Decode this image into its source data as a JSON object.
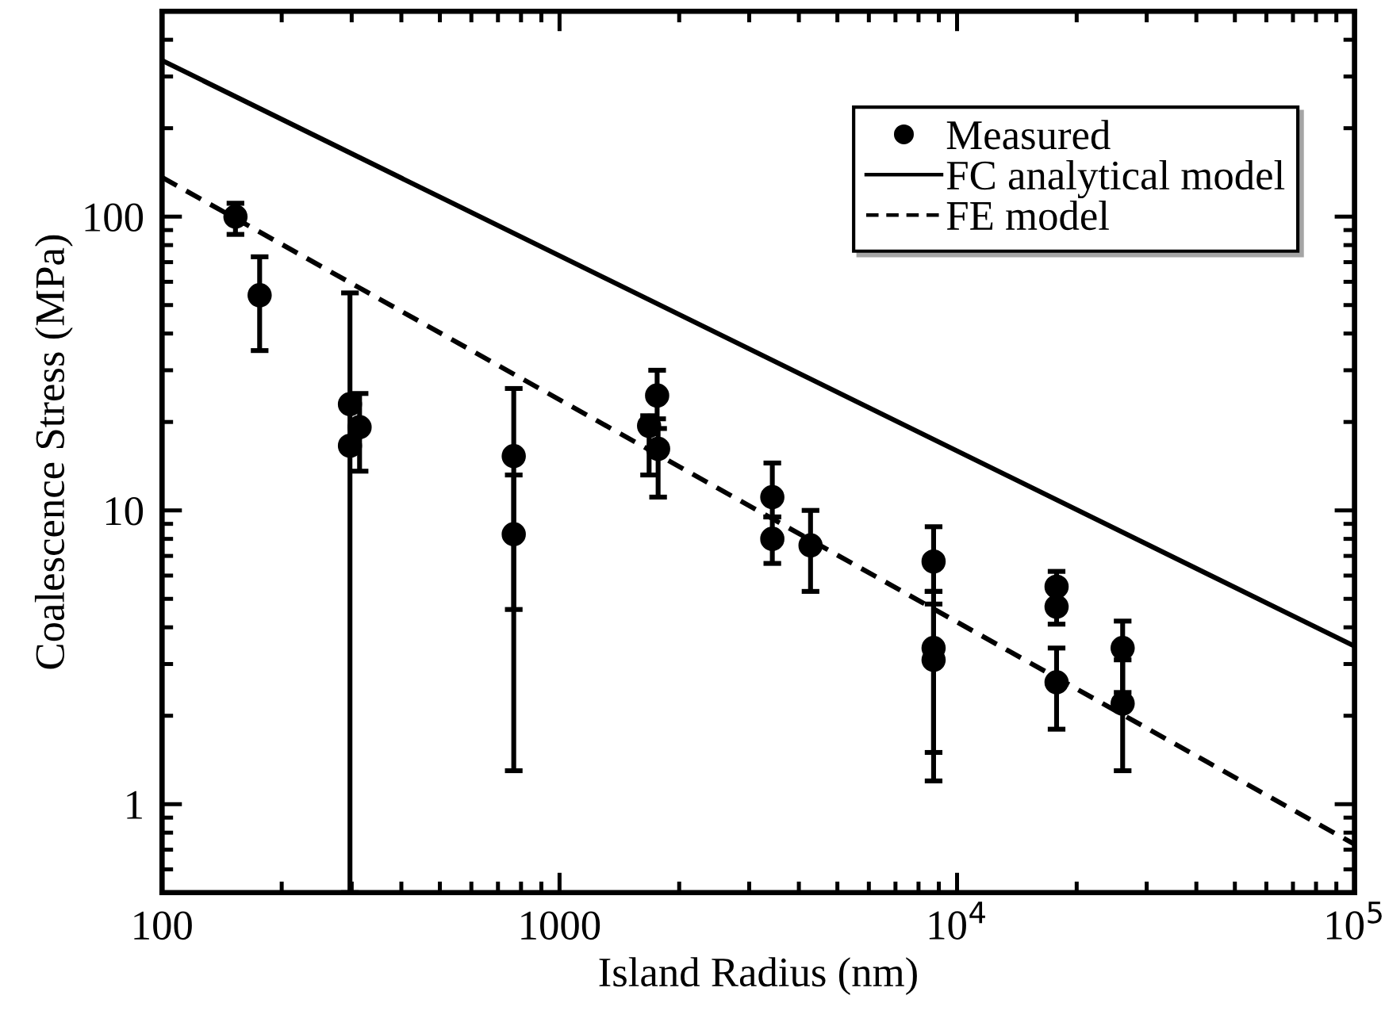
{
  "chart_data": {
    "type": "scatter",
    "xlabel": "Island Radius (nm)",
    "ylabel": "Coalescence Stress (MPa)",
    "log": "xy",
    "xlim": [
      100,
      100000
    ],
    "ylim": [
      0.5,
      500
    ],
    "xticks": [
      100,
      1000,
      {
        "value": 10000,
        "label": "10$^{4}$"
      },
      {
        "value": 100000,
        "label": "10$^{5}$"
      }
    ],
    "yticks": [
      1,
      10,
      100
    ],
    "grid": false,
    "legend": "top right",
    "series": [
      {
        "name": "Measured",
        "color": "#000000",
        "marker": "circle",
        "x": [
          153,
          176,
          297,
          297,
          314,
          767,
          767,
          1680,
          1760,
          1770,
          3430,
          3430,
          4280,
          8730,
          8730,
          8730,
          17800,
          17800,
          17800,
          26100,
          26100
        ],
        "values": [
          100,
          54,
          23,
          16.6,
          19.2,
          15.3,
          8.3,
          19.4,
          24.6,
          16.2,
          11.1,
          8.0,
          7.6,
          6.7,
          3.4,
          3.1,
          5.5,
          4.7,
          2.6,
          3.4,
          2.2
        ],
        "errors": [
          [
            87,
            111
          ],
          [
            35,
            73
          ],
          [
            0.5,
            55
          ],
          null,
          [
            13.6,
            25
          ],
          [
            4.6,
            26
          ],
          [
            1.3,
            13.2
          ],
          [
            13.2,
            21
          ],
          [
            20.5,
            30
          ],
          [
            11.1,
            19
          ],
          [
            9.5,
            14.5
          ],
          [
            6.6,
            9.5
          ],
          [
            5.3,
            10
          ],
          [
            5.3,
            8.8
          ],
          [
            1.5,
            4.8
          ],
          [
            1.2,
            5.3
          ],
          [
            5.5,
            6.2
          ],
          [
            4.1,
            4.7
          ],
          [
            1.8,
            3.4
          ],
          [
            2.4,
            4.2
          ],
          [
            1.3,
            3.1
          ]
        ]
      },
      {
        "name": "FC analytical model",
        "type": "line",
        "color": "#000000",
        "line_style": "solid",
        "x": [
          100,
          100000
        ],
        "values": [
          340,
          3.45
        ]
      },
      {
        "name": "FE model",
        "type": "line",
        "color": "#000000",
        "line_style": "dashed",
        "x": [
          100,
          100000
        ],
        "values": [
          136,
          0.73
        ]
      }
    ]
  }
}
